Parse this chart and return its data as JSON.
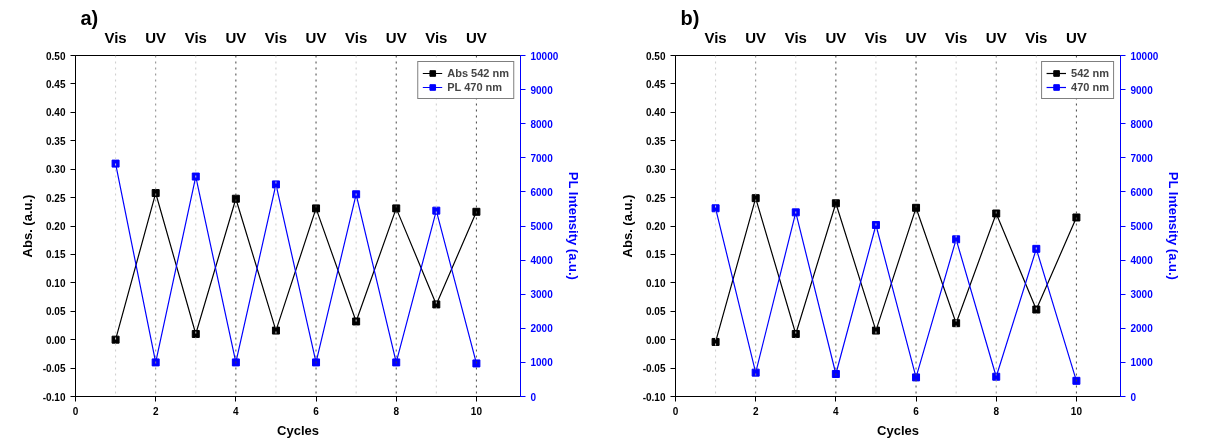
{
  "chart_data": [
    {
      "type": "line",
      "title": "a)",
      "xlabel": "Cycles",
      "ylabel": "Abs. (a.u.)",
      "y2label": "PL Intensity (a.u.)",
      "x": [
        1,
        2,
        3,
        4,
        5,
        6,
        7,
        8,
        9,
        10
      ],
      "series": [
        {
          "name": "Abs 542 nm",
          "color": "#000000",
          "values": [
            0.0,
            0.258,
            0.01,
            0.248,
            0.016,
            0.231,
            0.032,
            0.231,
            0.062,
            0.225
          ]
        },
        {
          "name": "PL 470 nm",
          "color": "#0000ff",
          "axis": "y2",
          "values": [
            6830,
            1000,
            6450,
            1000,
            6220,
            1000,
            5930,
            1000,
            5450,
            970
          ]
        }
      ],
      "xlim": [
        0,
        11.1
      ],
      "xticks": [
        0,
        2,
        4,
        6,
        8,
        10
      ],
      "ylim": [
        -0.1,
        0.5
      ],
      "yticks": [
        {
          "value": -0.1,
          "label": "-0.10"
        },
        {
          "value": -0.05,
          "label": "-0.05"
        },
        {
          "value": 0,
          "label": "0.00"
        },
        {
          "value": 0.05,
          "label": "0.05"
        },
        {
          "value": 0.1,
          "label": "0.10"
        },
        {
          "value": 0.15,
          "label": "0.15"
        },
        {
          "value": 0.2,
          "label": "0.20"
        },
        {
          "value": 0.25,
          "label": "0.25"
        },
        {
          "value": 0.3,
          "label": "0.30"
        },
        {
          "value": 0.35,
          "label": "0.35"
        },
        {
          "value": 0.4,
          "label": "0.40"
        },
        {
          "value": 0.45,
          "label": "0.45"
        },
        {
          "value": 0.5,
          "label": "0.50"
        }
      ],
      "y2lim": [
        0,
        10000
      ],
      "y2ticks": [
        0,
        1000,
        2000,
        3000,
        4000,
        5000,
        6000,
        7000,
        8000,
        9000,
        10000
      ],
      "ref_lines": [
        {
          "axis": "x",
          "value": 1,
          "color": "#cccccc",
          "line_style": "dotted"
        },
        {
          "axis": "x",
          "value": 2,
          "color": "#888888",
          "line_style": "dotted"
        },
        {
          "axis": "x",
          "value": 3,
          "color": "#cccccc",
          "line_style": "dotted"
        },
        {
          "axis": "x",
          "value": 4,
          "color": "#444444",
          "line_style": "dotted"
        },
        {
          "axis": "x",
          "value": 5,
          "color": "#cccccc",
          "line_style": "dotted"
        },
        {
          "axis": "x",
          "value": 6,
          "color": "#444444",
          "line_style": "dotted"
        },
        {
          "axis": "x",
          "value": 7,
          "color": "#cccccc",
          "line_style": "dotted"
        },
        {
          "axis": "x",
          "value": 8,
          "color": "#444444",
          "line_style": "dotted"
        },
        {
          "axis": "x",
          "value": 9,
          "color": "#cccccc",
          "line_style": "dotted"
        },
        {
          "axis": "x",
          "value": 10,
          "color": "#444444",
          "line_style": "dotted"
        }
      ],
      "annotations": [
        "Vis",
        "UV",
        "Vis",
        "UV",
        "Vis",
        "UV",
        "Vis",
        "UV",
        "Vis",
        "UV"
      ],
      "marker": "square",
      "legend": "top right",
      "grid": false
    },
    {
      "type": "line",
      "title": "b)",
      "xlabel": "Cycles",
      "ylabel": "Abs. (a.u.)",
      "y2label": "PL Intensity (a.u.)",
      "x": [
        1,
        2,
        3,
        4,
        5,
        6,
        7,
        8,
        9,
        10
      ],
      "series": [
        {
          "name": "542 nm",
          "color": "#000000",
          "values": [
            -0.004,
            0.249,
            0.01,
            0.24,
            0.016,
            0.232,
            0.029,
            0.222,
            0.053,
            0.215
          ]
        },
        {
          "name": "470 nm",
          "color": "#0000ff",
          "axis": "y2",
          "values": [
            5520,
            700,
            5400,
            660,
            5030,
            560,
            4610,
            580,
            4330,
            460
          ]
        }
      ],
      "xlim": [
        0,
        11.1
      ],
      "xticks": [
        0,
        2,
        4,
        6,
        8,
        10
      ],
      "ylim": [
        -0.1,
        0.5
      ],
      "yticks": [
        {
          "value": -0.1,
          "label": "-0.10"
        },
        {
          "value": -0.05,
          "label": "-0.05"
        },
        {
          "value": 0,
          "label": "0.00"
        },
        {
          "value": 0.05,
          "label": "0.05"
        },
        {
          "value": 0.1,
          "label": "0.10"
        },
        {
          "value": 0.15,
          "label": "0.15"
        },
        {
          "value": 0.2,
          "label": "0.20"
        },
        {
          "value": 0.25,
          "label": "0.25"
        },
        {
          "value": 0.3,
          "label": "0.30"
        },
        {
          "value": 0.35,
          "label": "0.35"
        },
        {
          "value": 0.4,
          "label": "0.40"
        },
        {
          "value": 0.45,
          "label": "0.45"
        },
        {
          "value": 0.5,
          "label": "0.50"
        }
      ],
      "y2lim": [
        0,
        10000
      ],
      "y2ticks": [
        0,
        1000,
        2000,
        3000,
        4000,
        5000,
        6000,
        7000,
        8000,
        9000,
        10000
      ],
      "ref_lines": [
        {
          "axis": "x",
          "value": 1,
          "color": "#cccccc",
          "line_style": "dotted"
        },
        {
          "axis": "x",
          "value": 2,
          "color": "#888888",
          "line_style": "dotted"
        },
        {
          "axis": "x",
          "value": 3,
          "color": "#cccccc",
          "line_style": "dotted"
        },
        {
          "axis": "x",
          "value": 4,
          "color": "#444444",
          "line_style": "dotted"
        },
        {
          "axis": "x",
          "value": 5,
          "color": "#cccccc",
          "line_style": "dotted"
        },
        {
          "axis": "x",
          "value": 6,
          "color": "#444444",
          "line_style": "dotted"
        },
        {
          "axis": "x",
          "value": 7,
          "color": "#cccccc",
          "line_style": "dotted"
        },
        {
          "axis": "x",
          "value": 8,
          "color": "#888888",
          "line_style": "dotted"
        },
        {
          "axis": "x",
          "value": 9,
          "color": "#cccccc",
          "line_style": "dotted"
        },
        {
          "axis": "x",
          "value": 10,
          "color": "#444444",
          "line_style": "dotted"
        }
      ],
      "annotations": [
        "Vis",
        "UV",
        "Vis",
        "UV",
        "Vis",
        "UV",
        "Vis",
        "UV",
        "Vis",
        "UV"
      ],
      "marker": "square",
      "legend": "top right",
      "grid": false
    }
  ]
}
